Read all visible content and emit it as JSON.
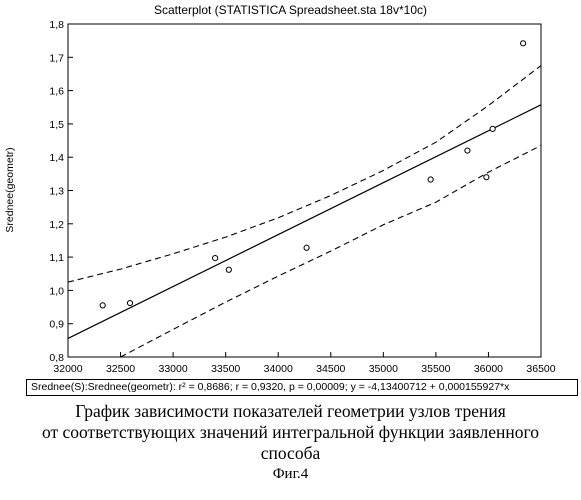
{
  "chart_data": {
    "type": "scatter",
    "title": "Scatterplot (STATISTICA Spreadsheet.sta 18v*10c)",
    "xlabel": "",
    "ylabel": "Srednee(geometr)",
    "xlim": [
      32000,
      36500
    ],
    "ylim": [
      0.8,
      1.8
    ],
    "x_ticks": [
      "32000",
      "32500",
      "33000",
      "33500",
      "34000",
      "34500",
      "35000",
      "35500",
      "36000",
      "36500"
    ],
    "y_ticks": [
      "0,8",
      "0,9",
      "1,0",
      "1,1",
      "1,2",
      "1,3",
      "1,4",
      "1,5",
      "1,6",
      "1,7",
      "1,8"
    ],
    "grid": false,
    "points": [
      {
        "x": 32330,
        "y": 0.955
      },
      {
        "x": 32590,
        "y": 0.962
      },
      {
        "x": 33400,
        "y": 1.097
      },
      {
        "x": 33530,
        "y": 1.062
      },
      {
        "x": 34270,
        "y": 1.128
      },
      {
        "x": 35450,
        "y": 1.333
      },
      {
        "x": 35800,
        "y": 1.42
      },
      {
        "x": 35980,
        "y": 1.34
      },
      {
        "x": 36040,
        "y": 1.485
      },
      {
        "x": 36330,
        "y": 1.742
      }
    ],
    "regression": {
      "intercept": -4.13400712,
      "slope": 0.000155927
    },
    "confidence_band": {
      "upper": [
        [
          32000,
          1.025
        ],
        [
          32500,
          1.064
        ],
        [
          33000,
          1.11
        ],
        [
          33500,
          1.16
        ],
        [
          34000,
          1.218
        ],
        [
          34500,
          1.285
        ],
        [
          35000,
          1.36
        ],
        [
          35500,
          1.445
        ],
        [
          36000,
          1.555
        ],
        [
          36500,
          1.675
        ]
      ],
      "lower": [
        [
          32500,
          0.8
        ],
        [
          33000,
          0.883
        ],
        [
          33500,
          0.965
        ],
        [
          34000,
          1.043
        ],
        [
          34500,
          1.118
        ],
        [
          35000,
          1.197
        ],
        [
          35500,
          1.265
        ],
        [
          36000,
          1.355
        ],
        [
          36500,
          1.435
        ]
      ]
    },
    "stats_text": "Srednee(S):Srednee(geometr):  r² = 0,8686;  r = 0,9320, p = 0,00009;  y = -4,13400712 + 0,000155927*x"
  },
  "caption": {
    "line1": "График зависимости показателей геометрии узлов трения",
    "line2": "от соответствующих значений интегральной функции заявленного",
    "line3": "способа",
    "figure_label": "Фиг.4"
  }
}
